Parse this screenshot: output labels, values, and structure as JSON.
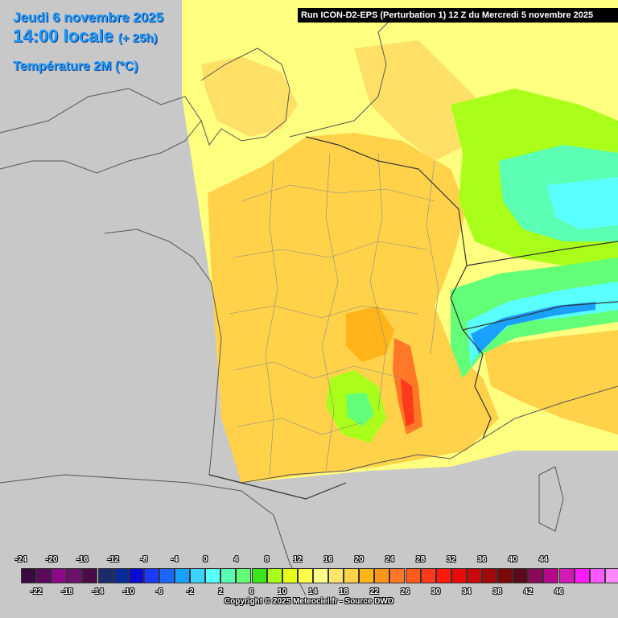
{
  "header": {
    "date": "Jeudi 6 novembre 2025",
    "time": "14:00 locale",
    "offset": "(+ 25h)",
    "variable": "Température 2M (°C)"
  },
  "run_banner": "Run ICON-D2-EPS (Perturbation 1) 12 Z du Mercredi 5 novembre 2025",
  "legend": {
    "top_labels": [
      "-24",
      "-20",
      "-16",
      "-12",
      "-8",
      "-4",
      "0",
      "4",
      "8",
      "12",
      "16",
      "20",
      "24",
      "28",
      "32",
      "36",
      "40",
      "44"
    ],
    "bottom_labels": [
      "-22",
      "-18",
      "-14",
      "-10",
      "-6",
      "-2",
      "2",
      "6",
      "10",
      "14",
      "18",
      "22",
      "26",
      "30",
      "34",
      "38",
      "42",
      "46"
    ],
    "colors": [
      "#3a0a3e",
      "#5a0a5a",
      "#8a0a8a",
      "#6a126a",
      "#4a0a4a",
      "#1a2a6a",
      "#0a2a9a",
      "#0a0ad2",
      "#1a3aff",
      "#1a66ff",
      "#1aa0ff",
      "#3ad2ff",
      "#5affff",
      "#5affb4",
      "#64ff78",
      "#3ae61a",
      "#aaff1a",
      "#e6ff1a",
      "#ffff4a",
      "#ffff8a",
      "#ffe666",
      "#ffd24a",
      "#ffb41a",
      "#ff961a",
      "#ff7828",
      "#ff5a1a",
      "#ff3a1a",
      "#ff1a0a",
      "#e60a0a",
      "#c80a0a",
      "#a00a0a",
      "#7a0a0a",
      "#5a0a1a",
      "#8a0a5a",
      "#b40a8a",
      "#d21ab4",
      "#ff1aff",
      "#ff5aff",
      "#ff8aff"
    ]
  },
  "copyright": "Copyright © 2025 Meteociel.fr - Source DWD"
}
